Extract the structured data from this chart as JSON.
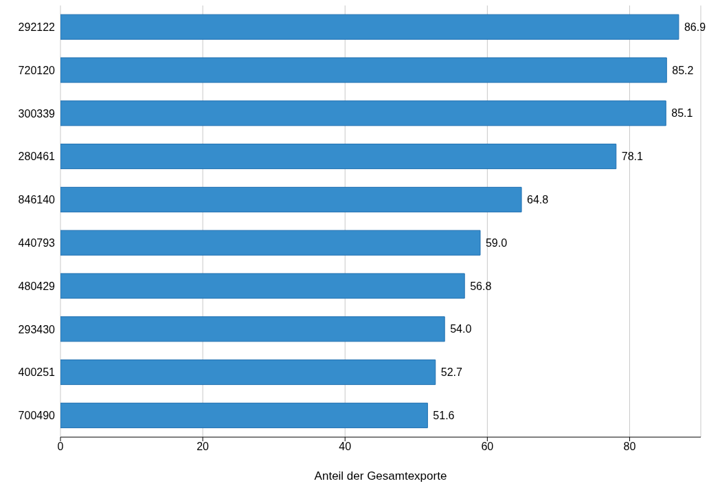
{
  "chart_data": {
    "type": "bar",
    "orientation": "horizontal",
    "xlabel": "Anteil der Gesamtexporte",
    "categories": [
      "292122",
      "720120",
      "300339",
      "280461",
      "846140",
      "440793",
      "480429",
      "293430",
      "400251",
      "700490"
    ],
    "values": [
      86.9,
      85.2,
      85.1,
      78.1,
      64.8,
      59.0,
      56.8,
      54.0,
      52.7,
      51.6
    ],
    "value_labels": [
      "86.9",
      "85.2",
      "85.1",
      "78.1",
      "64.8",
      "59.0",
      "56.8",
      "54.0",
      "52.7",
      "51.6"
    ],
    "color": "#368dcc",
    "xlim": [
      0,
      90
    ],
    "xticks": [
      0,
      20,
      40,
      60,
      80
    ],
    "grid": "x"
  }
}
